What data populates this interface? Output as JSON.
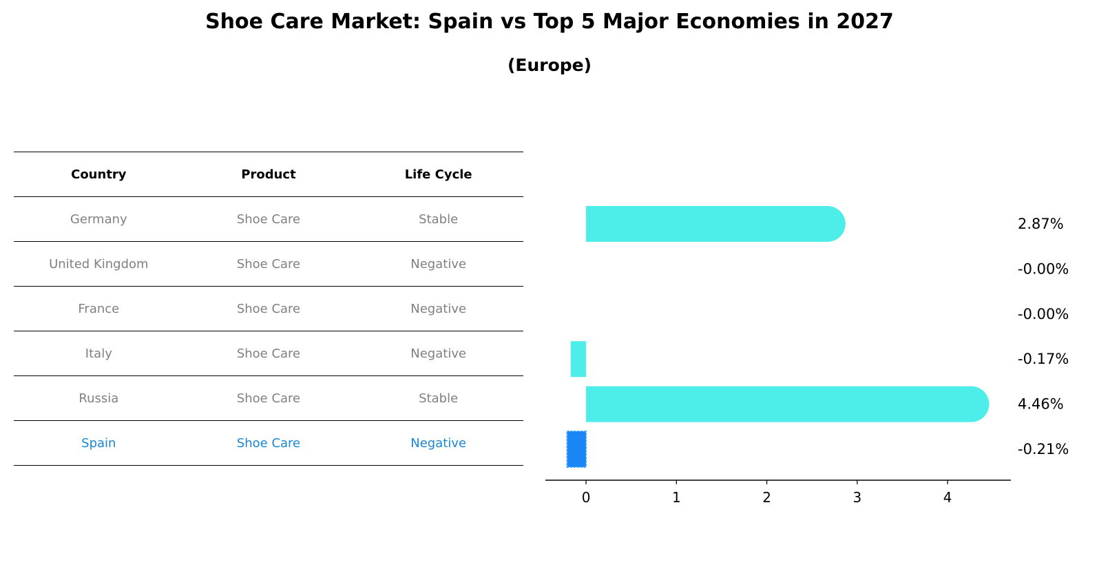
{
  "title": "Shoe Care Market: Spain vs Top 5 Major Economies in 2027",
  "subtitle": "(Europe)",
  "table": {
    "headers": [
      "Country",
      "Product",
      "Life Cycle"
    ],
    "rows": [
      {
        "country": "Germany",
        "product": "Shoe Care",
        "life_cycle": "Stable"
      },
      {
        "country": "United Kingdom",
        "product": "Shoe Care",
        "life_cycle": "Negative"
      },
      {
        "country": "France",
        "product": "Shoe Care",
        "life_cycle": "Negative"
      },
      {
        "country": "Italy",
        "product": "Shoe Care",
        "life_cycle": "Negative"
      },
      {
        "country": "Russia",
        "product": "Shoe Care",
        "life_cycle": "Stable"
      },
      {
        "country": "Spain",
        "product": "Shoe Care",
        "life_cycle": "Negative"
      }
    ],
    "highlight_row": "Spain"
  },
  "colors": {
    "bar": "#4deeea",
    "highlight_bar": "#1a86f6",
    "muted_text": "#808080",
    "highlight_text": "#1a86d6"
  },
  "chart_data": {
    "type": "bar",
    "orientation": "horizontal",
    "categories": [
      "Germany",
      "United Kingdom",
      "France",
      "Italy",
      "Russia",
      "Spain"
    ],
    "values": [
      2.87,
      -0.0,
      -0.0,
      -0.17,
      4.46,
      -0.21
    ],
    "value_labels": [
      "2.87%",
      "-0.00%",
      "-0.00%",
      "-0.17%",
      "4.46%",
      "-0.21%"
    ],
    "highlight": "Spain",
    "xlim": [
      -0.45,
      4.7
    ],
    "xticks": [
      0,
      1,
      2,
      3,
      4
    ],
    "xtick_labels": [
      "0",
      "1",
      "2",
      "3",
      "4"
    ],
    "xlabel": "",
    "ylabel": "",
    "grid": false
  }
}
